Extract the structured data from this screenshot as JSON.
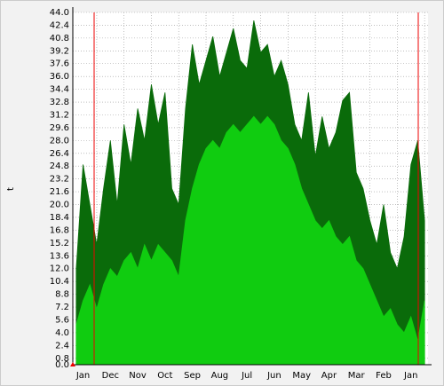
{
  "chart_data": {
    "type": "area",
    "ylabel": "t",
    "categories": [
      null,
      "Jan",
      null,
      null,
      null,
      "Dec",
      null,
      null,
      null,
      "Nov",
      null,
      null,
      null,
      "Oct",
      null,
      null,
      null,
      "Sep",
      null,
      null,
      null,
      "Aug",
      null,
      null,
      null,
      "Jul",
      null,
      null,
      null,
      "Jun",
      null,
      null,
      null,
      "May",
      null,
      null,
      null,
      "Apr",
      null,
      null,
      null,
      "Mar",
      null,
      null,
      null,
      "Feb",
      null,
      null,
      null,
      "Jan",
      null,
      null
    ],
    "series": [
      {
        "color": "#0a6b0a",
        "values": [
          12,
          25,
          20,
          15,
          22,
          28,
          20,
          30,
          25,
          32,
          28,
          35,
          30,
          34,
          22,
          20,
          32,
          40,
          35,
          38,
          41,
          36,
          39,
          42,
          38,
          37,
          43,
          39,
          40,
          36,
          38,
          35,
          30,
          28,
          34,
          26,
          31,
          27,
          29,
          33,
          34,
          24,
          22,
          18,
          15,
          20,
          14,
          12,
          16,
          25,
          28,
          18
        ]
      },
      {
        "color": "#10cc10",
        "values": [
          5,
          8,
          10,
          7,
          10,
          12,
          11,
          13,
          14,
          12,
          15,
          13,
          15,
          14,
          13,
          11,
          18,
          22,
          25,
          27,
          28,
          27,
          29,
          30,
          29,
          30,
          31,
          30,
          31,
          30,
          28,
          27,
          25,
          22,
          20,
          18,
          17,
          18,
          16,
          15,
          16,
          13,
          12,
          10,
          8,
          6,
          7,
          5,
          4,
          6,
          3,
          8
        ]
      }
    ],
    "ylim": [
      0,
      44
    ],
    "yticks": [
      {
        "value": 0,
        "label": "0.0"
      },
      0.8,
      2.4,
      {
        "value": 4,
        "label": "4.0"
      },
      5.6,
      7.2,
      8.8,
      10.4,
      {
        "value": 12,
        "label": "12.0"
      },
      13.6,
      15.2,
      16.8,
      18.4,
      {
        "value": 20,
        "label": "20.0"
      },
      21.6,
      23.2,
      24.8,
      26.4,
      {
        "value": 28,
        "label": "28.0"
      },
      29.6,
      31.2,
      32.8,
      34.4,
      {
        "value": 36,
        "label": "36.0"
      },
      37.6,
      39.2,
      40.8,
      42.4,
      {
        "value": 44,
        "label": "44.0"
      }
    ],
    "grid": true
  }
}
